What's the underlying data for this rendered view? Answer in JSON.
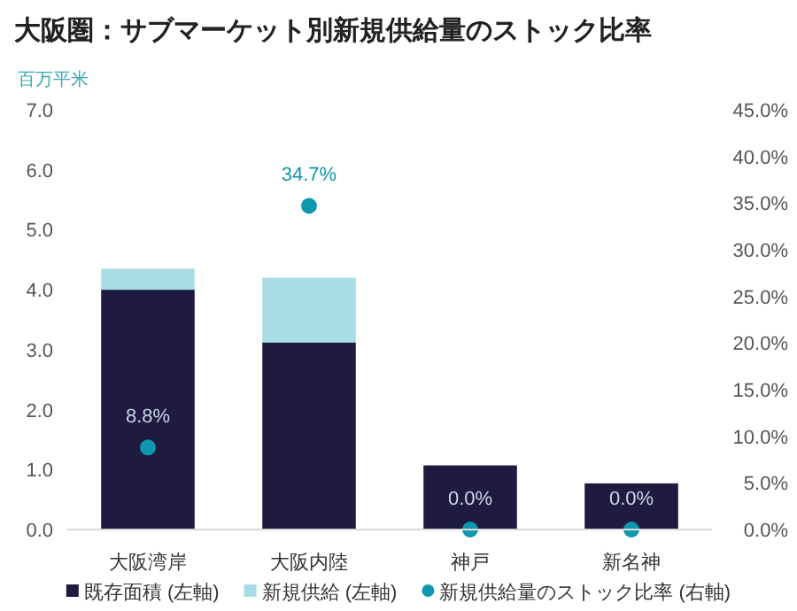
{
  "chart_data": {
    "type": "bar",
    "title": "大阪圏：サブマーケット別新規供給量のストック比率",
    "ylabel": "百万平米",
    "categories": [
      "大阪湾岸",
      "大阪内陸",
      "神戸",
      "新名神"
    ],
    "stacked": true,
    "legend": "bottom",
    "grid": false,
    "series": [
      {
        "name": "既存面積 (左軸)",
        "color": "#1e1a40",
        "values": [
          4.0,
          3.12,
          1.07,
          0.77
        ]
      },
      {
        "name": "新規供給 (左軸)",
        "color": "#a9dde6",
        "values": [
          0.35,
          1.08,
          0,
          0
        ]
      },
      {
        "name": "新規供給量のストック比率 (右軸)",
        "type": "scatter",
        "axis": "y2",
        "color": "#0e97ad",
        "marker": "circle",
        "values": [
          8.8,
          34.7,
          0,
          0
        ],
        "value_labels": [
          "8.8%",
          "34.7%",
          "0.0%",
          "0.0%"
        ]
      }
    ],
    "ylim": [
      0,
      7
    ],
    "yticks": [
      {
        "value": 0,
        "label": "0.0"
      },
      {
        "value": 1,
        "label": "1.0"
      },
      {
        "value": 2,
        "label": "2.0"
      },
      {
        "value": 3,
        "label": "3.0"
      },
      {
        "value": 4,
        "label": "4.0"
      },
      {
        "value": 5,
        "label": "5.0"
      },
      {
        "value": 6,
        "label": "6.0"
      },
      {
        "value": 7,
        "label": "7.0"
      }
    ],
    "y2lim": [
      0,
      45
    ],
    "y2ticks": [
      {
        "value": 0,
        "label": "0.0%"
      },
      {
        "value": 5,
        "label": "5.0%"
      },
      {
        "value": 10,
        "label": "10.0%"
      },
      {
        "value": 15,
        "label": "15.0%"
      },
      {
        "value": 20,
        "label": "20.0%"
      },
      {
        "value": 25,
        "label": "25.0%"
      },
      {
        "value": 30,
        "label": "30.0%"
      },
      {
        "value": 35,
        "label": "35.0%"
      },
      {
        "value": 40,
        "label": "40.0%"
      },
      {
        "value": 45,
        "label": "45.0%"
      }
    ]
  }
}
